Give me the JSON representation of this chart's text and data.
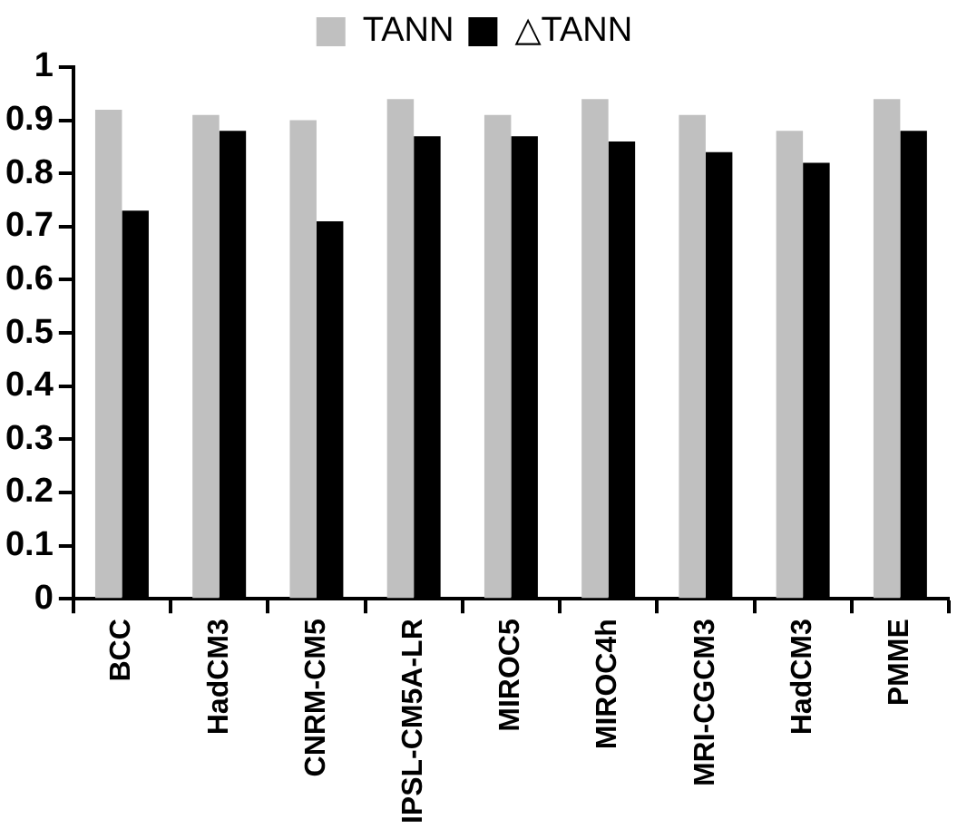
{
  "chart_data": {
    "type": "bar",
    "categories": [
      "BCC",
      "HadCM3",
      "CNRM-CM5",
      "IPSL-CM5A-LR",
      "MIROC5",
      "MIROC4h",
      "MRI-CGCM3",
      "HadCM3",
      "PMME"
    ],
    "series": [
      {
        "name": "TANN",
        "color": "#c0c0c0",
        "values": [
          0.92,
          0.91,
          0.9,
          0.94,
          0.91,
          0.94,
          0.91,
          0.88,
          0.94
        ]
      },
      {
        "name": "△TANN",
        "color": "#000000",
        "values": [
          0.73,
          0.88,
          0.71,
          0.87,
          0.87,
          0.86,
          0.84,
          0.82,
          0.88
        ]
      }
    ],
    "ylim": [
      0,
      1
    ],
    "yticks": [
      0,
      0.1,
      0.2,
      0.3,
      0.4,
      0.5,
      0.6,
      0.7,
      0.8,
      0.9,
      1
    ],
    "grid": false,
    "legend": "top"
  }
}
